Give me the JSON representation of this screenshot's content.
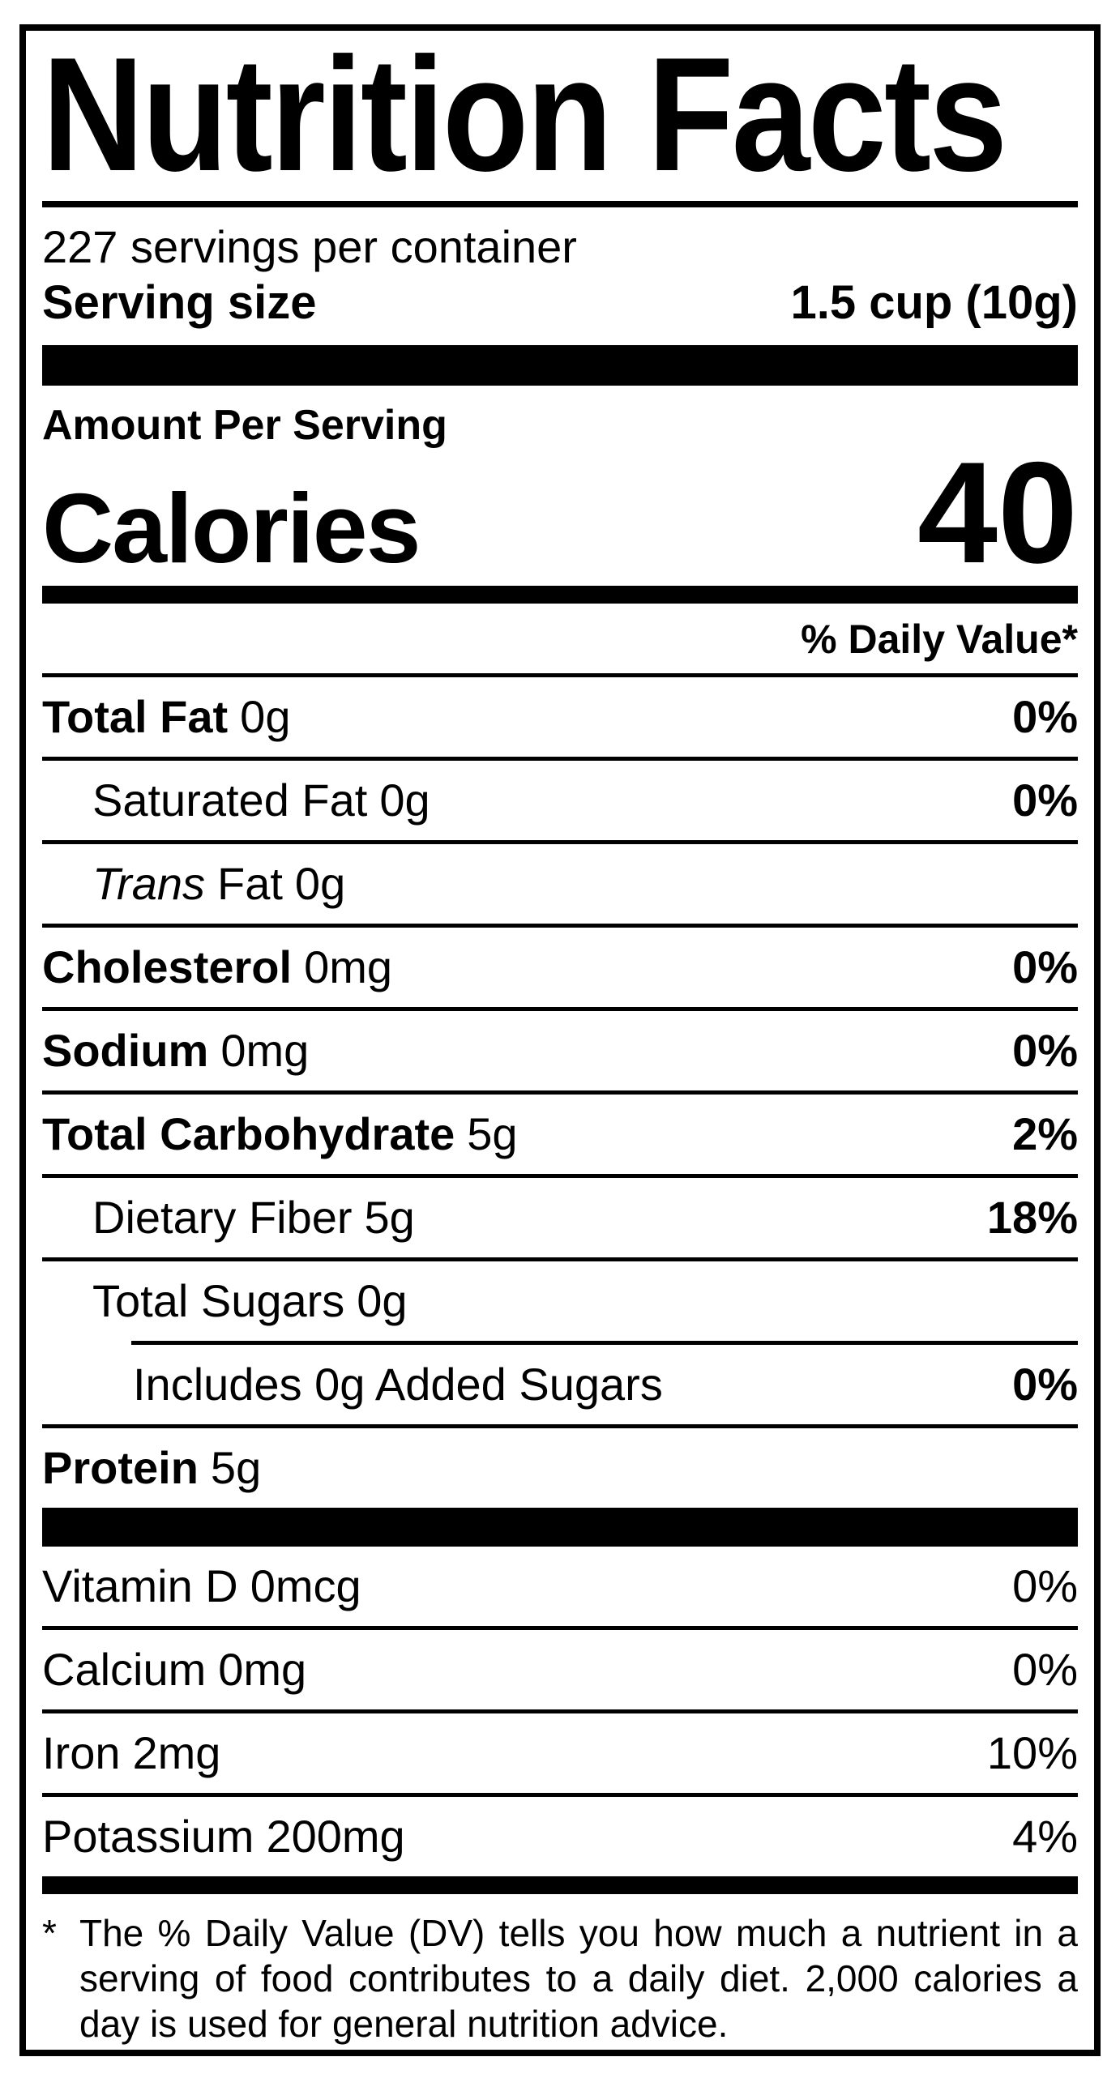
{
  "label": {
    "title": "Nutrition Facts",
    "servings_per_container": "227 servings per container",
    "serving_size": {
      "label": "Serving size",
      "value": "1.5 cup (10g)"
    },
    "amount_per_serving": "Amount Per Serving",
    "calories": {
      "label": "Calories",
      "value": "40"
    },
    "daily_value_header": "% Daily Value*",
    "nutrients": [
      {
        "name": "Total Fat",
        "amount": "0g",
        "dv": "0%"
      },
      {
        "name": "Saturated Fat",
        "amount": "0g",
        "dv": "0%"
      },
      {
        "name_italic": "Trans",
        "name": "Fat",
        "amount": "0g",
        "dv": ""
      },
      {
        "name": "Cholesterol",
        "amount": "0mg",
        "dv": "0%"
      },
      {
        "name": "Sodium",
        "amount": "0mg",
        "dv": "0%"
      },
      {
        "name": "Total Carbohydrate",
        "amount": "5g",
        "dv": "2%"
      },
      {
        "name": "Dietary Fiber",
        "amount": "5g",
        "dv": "18%"
      },
      {
        "name": "Total Sugars",
        "amount": "0g",
        "dv": ""
      },
      {
        "name": "Includes 0g Added Sugars",
        "amount": "",
        "dv": "0%"
      },
      {
        "name": "Protein",
        "amount": "5g",
        "dv": ""
      }
    ],
    "micronutrients": [
      {
        "name": "Vitamin D",
        "amount": "0mcg",
        "dv": "0%"
      },
      {
        "name": "Calcium",
        "amount": "0mg",
        "dv": "0%"
      },
      {
        "name": "Iron",
        "amount": "2mg",
        "dv": "10%"
      },
      {
        "name": "Potassium",
        "amount": "200mg",
        "dv": "4%"
      }
    ],
    "footnote": {
      "marker": "*",
      "text": "The % Daily Value (DV) tells you how much a nutrient in a serving of food contributes to a daily diet. 2,000 calories a day is used for general nutrition advice."
    },
    "colors": {
      "ink": "#000000",
      "background": "#ffffff"
    }
  }
}
